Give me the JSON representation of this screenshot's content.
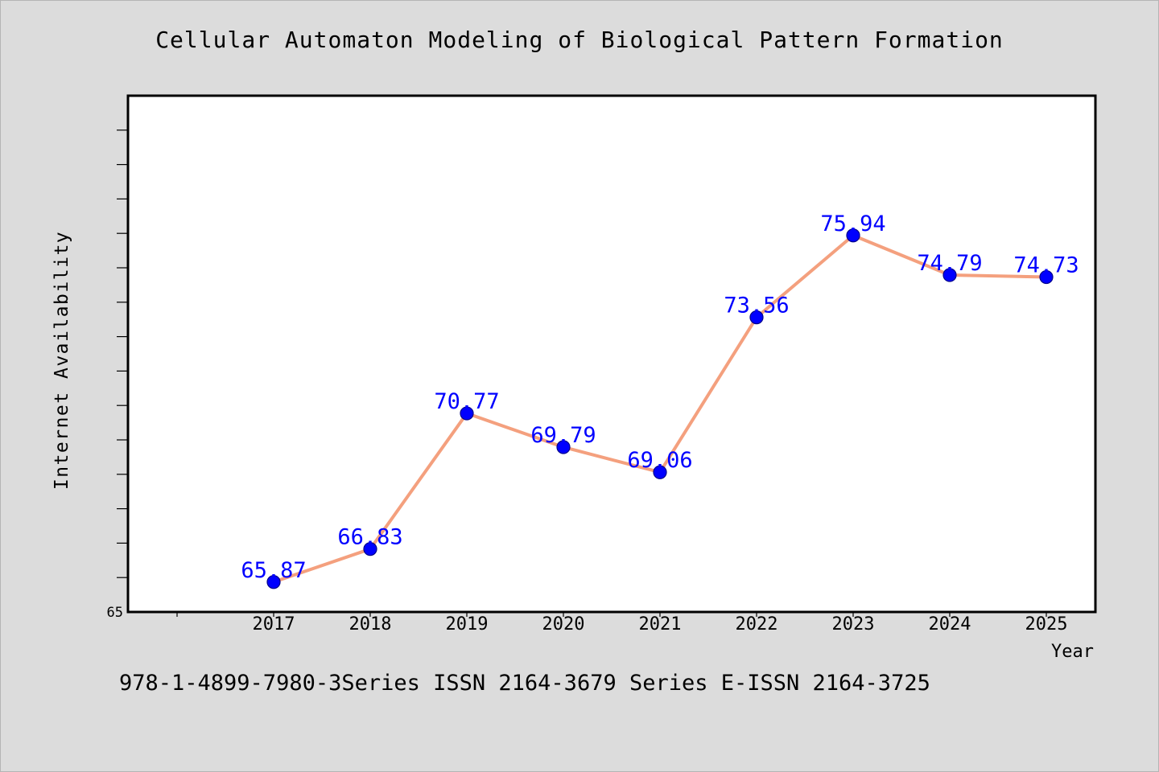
{
  "chart_data": {
    "type": "line",
    "title": "Cellular Automaton Modeling of Biological Pattern Formation",
    "xlabel": "Year",
    "ylabel": "Internet Availability",
    "categories": [
      "2017",
      "2018",
      "2019",
      "2020",
      "2021",
      "2022",
      "2023",
      "2024",
      "2025"
    ],
    "values": [
      65.87,
      66.83,
      70.77,
      69.79,
      69.06,
      73.56,
      75.94,
      74.79,
      74.73
    ],
    "data_labels": [
      "65.87",
      "66.83",
      "70.77",
      "69.79",
      "69.06",
      "73.56",
      "75.94",
      "74.79",
      "74.73"
    ],
    "ylim": [
      65,
      80
    ],
    "y_tick_labels": [
      "65"
    ],
    "grid": false,
    "colors": {
      "line": "#f4a07e",
      "marker": "#0000ff",
      "marker_edge": "#00008b",
      "data_label": "#0000ff",
      "plot_bg": "#ffffff",
      "page_bg": "#dcdcdc"
    }
  },
  "footer": "978-1-4899-7980-3Series ISSN 2164-3679 Series E-ISSN 2164-3725"
}
